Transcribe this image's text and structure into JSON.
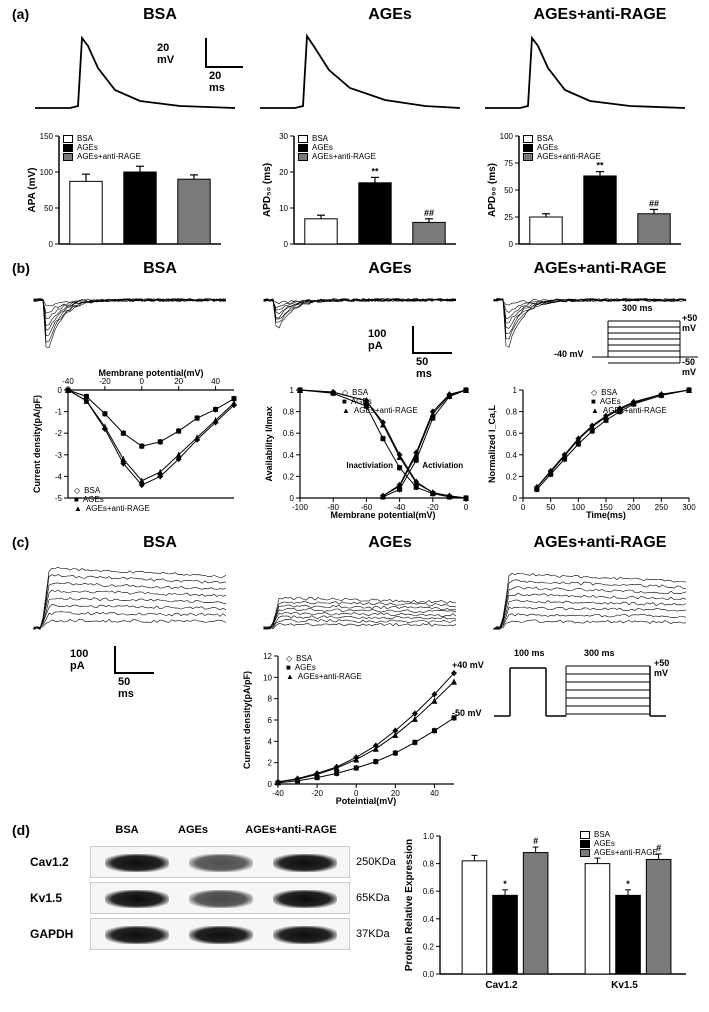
{
  "panel_labels": {
    "a": "(a)",
    "b": "(b)",
    "c": "(c)",
    "d": "(d)"
  },
  "conditions": [
    "BSA",
    "AGEs",
    "AGEs+anti-RAGE"
  ],
  "colors": {
    "bsa": "#ffffff",
    "ages": "#000000",
    "anti": "#7a7a7a",
    "axis": "#000000",
    "bg": "#ffffff",
    "trace": "#000000"
  },
  "fonts": {
    "title_size": 16,
    "label_size": 10,
    "tick_size": 8
  },
  "panel_a": {
    "scalebar": {
      "v_label": "20 mV",
      "h_label": "20 ms"
    },
    "charts": [
      {
        "ylabel": "APA (mV)",
        "ylim": [
          0,
          150
        ],
        "ytick_step": 50,
        "values": [
          87,
          100,
          90
        ],
        "errors": [
          10,
          8,
          6
        ],
        "sig": [
          "",
          "",
          ""
        ]
      },
      {
        "ylabel": "APD₅₀ (ms)",
        "ylim": [
          0,
          30
        ],
        "ytick_step": 10,
        "values": [
          7,
          17,
          6
        ],
        "errors": [
          1,
          1.5,
          1
        ],
        "sig": [
          "",
          "**",
          "##"
        ]
      },
      {
        "ylabel": "APD₉₀ (ms)",
        "ylim": [
          0,
          100
        ],
        "ytick_step": 25,
        "values": [
          25,
          63,
          28
        ],
        "errors": [
          3,
          4,
          4
        ],
        "sig": [
          "",
          "**",
          "##"
        ]
      }
    ]
  },
  "panel_b": {
    "scalebar": {
      "v_label": "100 pA",
      "h_label": "50 ms"
    },
    "protocol": {
      "dur_label": "300 ms",
      "top": "+50 mV",
      "hold": "-40 mV",
      "bottom": "-50 mV"
    },
    "iv": {
      "xlabel": "Membrane potential(mV)",
      "ylabel": "Current density(pA/pF)",
      "xlim": [
        -40,
        50
      ],
      "xtick_step": 20,
      "ylim": [
        -5,
        0
      ],
      "ytick_step": 1,
      "series": [
        {
          "name": "BSA",
          "marker": "diamond",
          "x": [
            -40,
            -30,
            -20,
            -10,
            0,
            10,
            20,
            30,
            40,
            50
          ],
          "y": [
            0,
            -0.5,
            -1.8,
            -3.4,
            -4.4,
            -4.0,
            -3.2,
            -2.3,
            -1.5,
            -0.7
          ]
        },
        {
          "name": "AGEs",
          "marker": "square",
          "x": [
            -40,
            -30,
            -20,
            -10,
            0,
            10,
            20,
            30,
            40,
            50
          ],
          "y": [
            0,
            -0.3,
            -1.1,
            -2.0,
            -2.6,
            -2.4,
            -1.9,
            -1.3,
            -0.9,
            -0.4
          ]
        },
        {
          "name": "AGEs+anti-RAGE",
          "marker": "triangle",
          "x": [
            -40,
            -30,
            -20,
            -10,
            0,
            10,
            20,
            30,
            40,
            50
          ],
          "y": [
            0,
            -0.5,
            -1.7,
            -3.2,
            -4.2,
            -3.8,
            -3.0,
            -2.2,
            -1.4,
            -0.6
          ]
        }
      ],
      "sig_rows": [
        "*",
        "#",
        "##",
        "*",
        "#",
        "#",
        "*",
        "#",
        "##"
      ]
    },
    "avail": {
      "xlabel": "Membrane potential(mV)",
      "ylabel": "Availability I/Imax",
      "xlim": [
        -100,
        0
      ],
      "xtick_step": 20,
      "ylim": [
        0,
        1.0
      ],
      "ytick_step": 0.2,
      "inact_label": "Inactiviation",
      "act_label": "Activiation",
      "series_inact": [
        {
          "name": "BSA",
          "x": [
            -100,
            -80,
            -60,
            -50,
            -40,
            -30,
            -20,
            -10,
            0
          ],
          "y": [
            1.0,
            0.98,
            0.9,
            0.7,
            0.4,
            0.15,
            0.05,
            0.02,
            0.0
          ]
        },
        {
          "name": "AGEs",
          "x": [
            -100,
            -80,
            -60,
            -50,
            -40,
            -30,
            -20,
            -10,
            0
          ],
          "y": [
            1.0,
            0.97,
            0.85,
            0.55,
            0.28,
            0.1,
            0.04,
            0.01,
            0.0
          ]
        },
        {
          "name": "AGEs+anti-RAGE",
          "x": [
            -100,
            -80,
            -60,
            -50,
            -40,
            -30,
            -20,
            -10,
            0
          ],
          "y": [
            1.0,
            0.98,
            0.9,
            0.68,
            0.38,
            0.14,
            0.05,
            0.02,
            0.0
          ]
        }
      ],
      "series_act": [
        {
          "name": "BSA",
          "x": [
            -50,
            -40,
            -30,
            -20,
            -10,
            0
          ],
          "y": [
            0.02,
            0.12,
            0.42,
            0.8,
            0.96,
            1.0
          ]
        },
        {
          "name": "AGEs",
          "x": [
            -50,
            -40,
            -30,
            -20,
            -10,
            0
          ],
          "y": [
            0.01,
            0.08,
            0.35,
            0.74,
            0.94,
            1.0
          ]
        },
        {
          "name": "AGEs+anti-RAGE",
          "x": [
            -50,
            -40,
            -30,
            -20,
            -10,
            0
          ],
          "y": [
            0.02,
            0.11,
            0.4,
            0.78,
            0.95,
            1.0
          ]
        }
      ]
    },
    "recovery": {
      "xlabel": "Time(ms)",
      "ylabel": "Normalized I_Ca,L",
      "xlim": [
        0,
        300
      ],
      "xtick_step": 50,
      "ylim": [
        0,
        1.0
      ],
      "ytick_step": 0.2,
      "series": [
        {
          "name": "BSA",
          "x": [
            25,
            50,
            75,
            100,
            125,
            150,
            175,
            200,
            250,
            300
          ],
          "y": [
            0.1,
            0.25,
            0.4,
            0.55,
            0.67,
            0.76,
            0.83,
            0.89,
            0.96,
            1.0
          ]
        },
        {
          "name": "AGEs",
          "x": [
            25,
            50,
            75,
            100,
            125,
            150,
            175,
            200,
            250,
            300
          ],
          "y": [
            0.08,
            0.22,
            0.36,
            0.5,
            0.62,
            0.72,
            0.8,
            0.87,
            0.95,
            1.0
          ]
        },
        {
          "name": "AGEs+anti-RAGE",
          "x": [
            25,
            50,
            75,
            100,
            125,
            150,
            175,
            200,
            250,
            300
          ],
          "y": [
            0.1,
            0.24,
            0.39,
            0.54,
            0.66,
            0.75,
            0.82,
            0.88,
            0.96,
            1.0
          ]
        }
      ]
    }
  },
  "panel_c": {
    "scalebar": {
      "v_label": "100 pA",
      "h_label": "50 ms"
    },
    "protocol": {
      "pre_dur": "100 ms",
      "main_dur": "300 ms",
      "pre_top": "+40 mV",
      "main_top": "+50 mV",
      "hold": "-50 mV"
    },
    "iv": {
      "xlabel": "Poteintial(mV)",
      "ylabel": "Current density(pA/pF)",
      "xlim": [
        -40,
        50
      ],
      "xtick_step": 20,
      "ylim": [
        0,
        12
      ],
      "ytick_step": 2,
      "series": [
        {
          "name": "BSA",
          "marker": "diamond",
          "x": [
            -40,
            -30,
            -20,
            -10,
            0,
            10,
            20,
            30,
            40,
            50
          ],
          "y": [
            0.2,
            0.5,
            1.0,
            1.6,
            2.5,
            3.6,
            5.0,
            6.6,
            8.4,
            10.4
          ]
        },
        {
          "name": "AGEs",
          "marker": "square",
          "x": [
            -40,
            -30,
            -20,
            -10,
            0,
            10,
            20,
            30,
            40,
            50
          ],
          "y": [
            0.1,
            0.3,
            0.6,
            1.0,
            1.5,
            2.1,
            2.9,
            3.9,
            5.0,
            6.2
          ]
        },
        {
          "name": "AGEs+anti-RAGE",
          "marker": "triangle",
          "x": [
            -40,
            -30,
            -20,
            -10,
            0,
            10,
            20,
            30,
            40,
            50
          ],
          "y": [
            0.2,
            0.45,
            0.9,
            1.5,
            2.3,
            3.3,
            4.6,
            6.1,
            7.8,
            9.6
          ]
        }
      ],
      "sig": [
        "",
        "",
        "*",
        "**",
        "**",
        "*",
        "*",
        "*",
        "*",
        "*"
      ]
    }
  },
  "panel_d": {
    "proteins": [
      "Cav1.2",
      "Kv1.5",
      "GAPDH"
    ],
    "kda": [
      "250KDa",
      "65KDa",
      "37KDa"
    ],
    "lane_labels": [
      "BSA",
      "AGEs",
      "AGEs+anti-RAGE"
    ],
    "intensities": {
      "Cav1.2": [
        1.0,
        0.55,
        1.0
      ],
      "Kv1.5": [
        1.0,
        0.6,
        1.0
      ],
      "GAPDH": [
        1.0,
        1.0,
        1.0
      ]
    },
    "chart": {
      "ylabel": "Protein Relative Expression",
      "ylim": [
        0.0,
        1.0
      ],
      "ytick_step": 0.2,
      "groups": [
        "Cav1.2",
        "Kv1.5"
      ],
      "values": {
        "Cav1.2": [
          0.82,
          0.57,
          0.88
        ],
        "Kv1.5": [
          0.8,
          0.57,
          0.83
        ]
      },
      "errors": {
        "Cav1.2": [
          0.04,
          0.04,
          0.04
        ],
        "Kv1.5": [
          0.04,
          0.04,
          0.04
        ]
      },
      "sig": {
        "Cav1.2": [
          "",
          "*",
          "#"
        ],
        "Kv1.5": [
          "",
          "*",
          "#"
        ]
      }
    }
  }
}
